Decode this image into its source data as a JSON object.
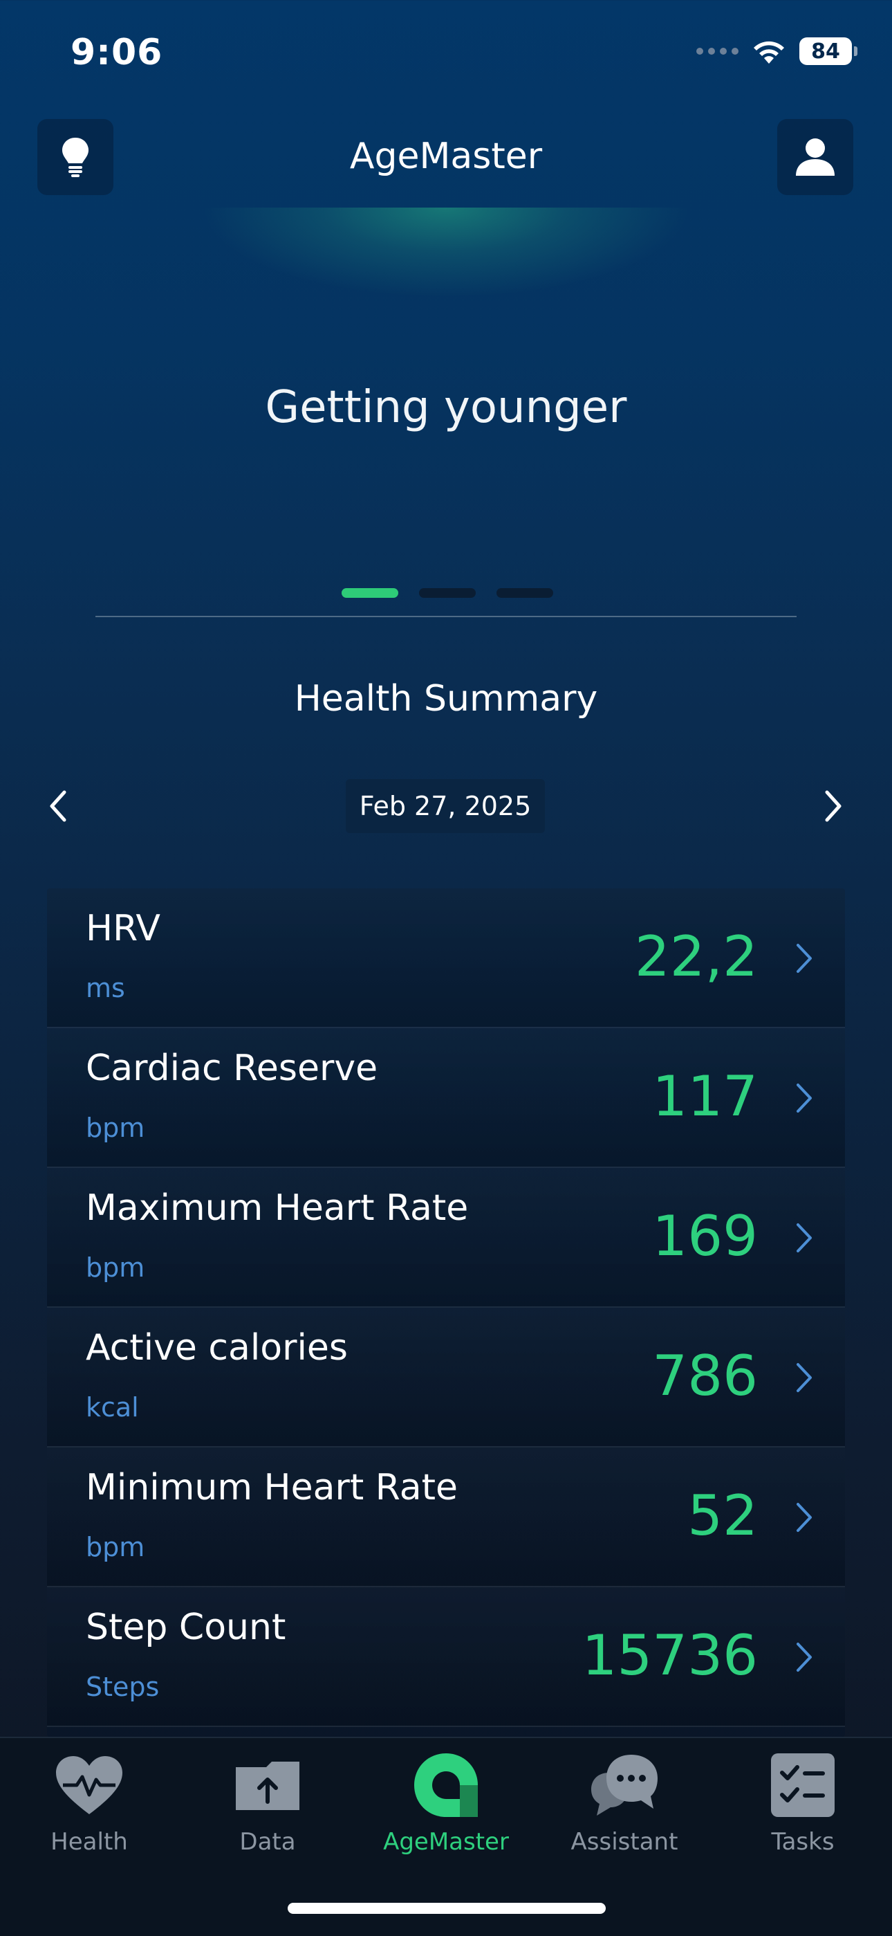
{
  "status_bar": {
    "time": "9:06",
    "battery": "84"
  },
  "header": {
    "title": "AgeMaster",
    "left_icon": "lightbulb-icon",
    "right_icon": "profile-icon"
  },
  "hero": {
    "text": "Getting younger",
    "pages_total": 3,
    "active_page": 1
  },
  "summary": {
    "title": "Health Summary",
    "date": "Feb 27, 2025"
  },
  "metrics": [
    {
      "name": "HRV",
      "unit": "ms",
      "value": "22,2"
    },
    {
      "name": "Cardiac Reserve",
      "unit": "bpm",
      "value": "117"
    },
    {
      "name": "Maximum Heart Rate",
      "unit": "bpm",
      "value": "169"
    },
    {
      "name": "Active calories",
      "unit": "kcal",
      "value": "786"
    },
    {
      "name": "Minimum Heart Rate",
      "unit": "bpm",
      "value": "52"
    },
    {
      "name": "Step Count",
      "unit": "Steps",
      "value": "15736"
    }
  ],
  "tabs": [
    {
      "label": "Health",
      "icon": "heart-pulse-icon",
      "active": false
    },
    {
      "label": "Data",
      "icon": "upload-folder-icon",
      "active": false
    },
    {
      "label": "AgeMaster",
      "icon": "agemaster-logo-icon",
      "active": true
    },
    {
      "label": "Assistant",
      "icon": "chat-bubbles-icon",
      "active": false
    },
    {
      "label": "Tasks",
      "icon": "checklist-icon",
      "active": false
    }
  ],
  "colors": {
    "accent_green": "#2ed07e",
    "unit_blue": "#4d8fd6",
    "inactive_tab": "#8c96a2"
  }
}
